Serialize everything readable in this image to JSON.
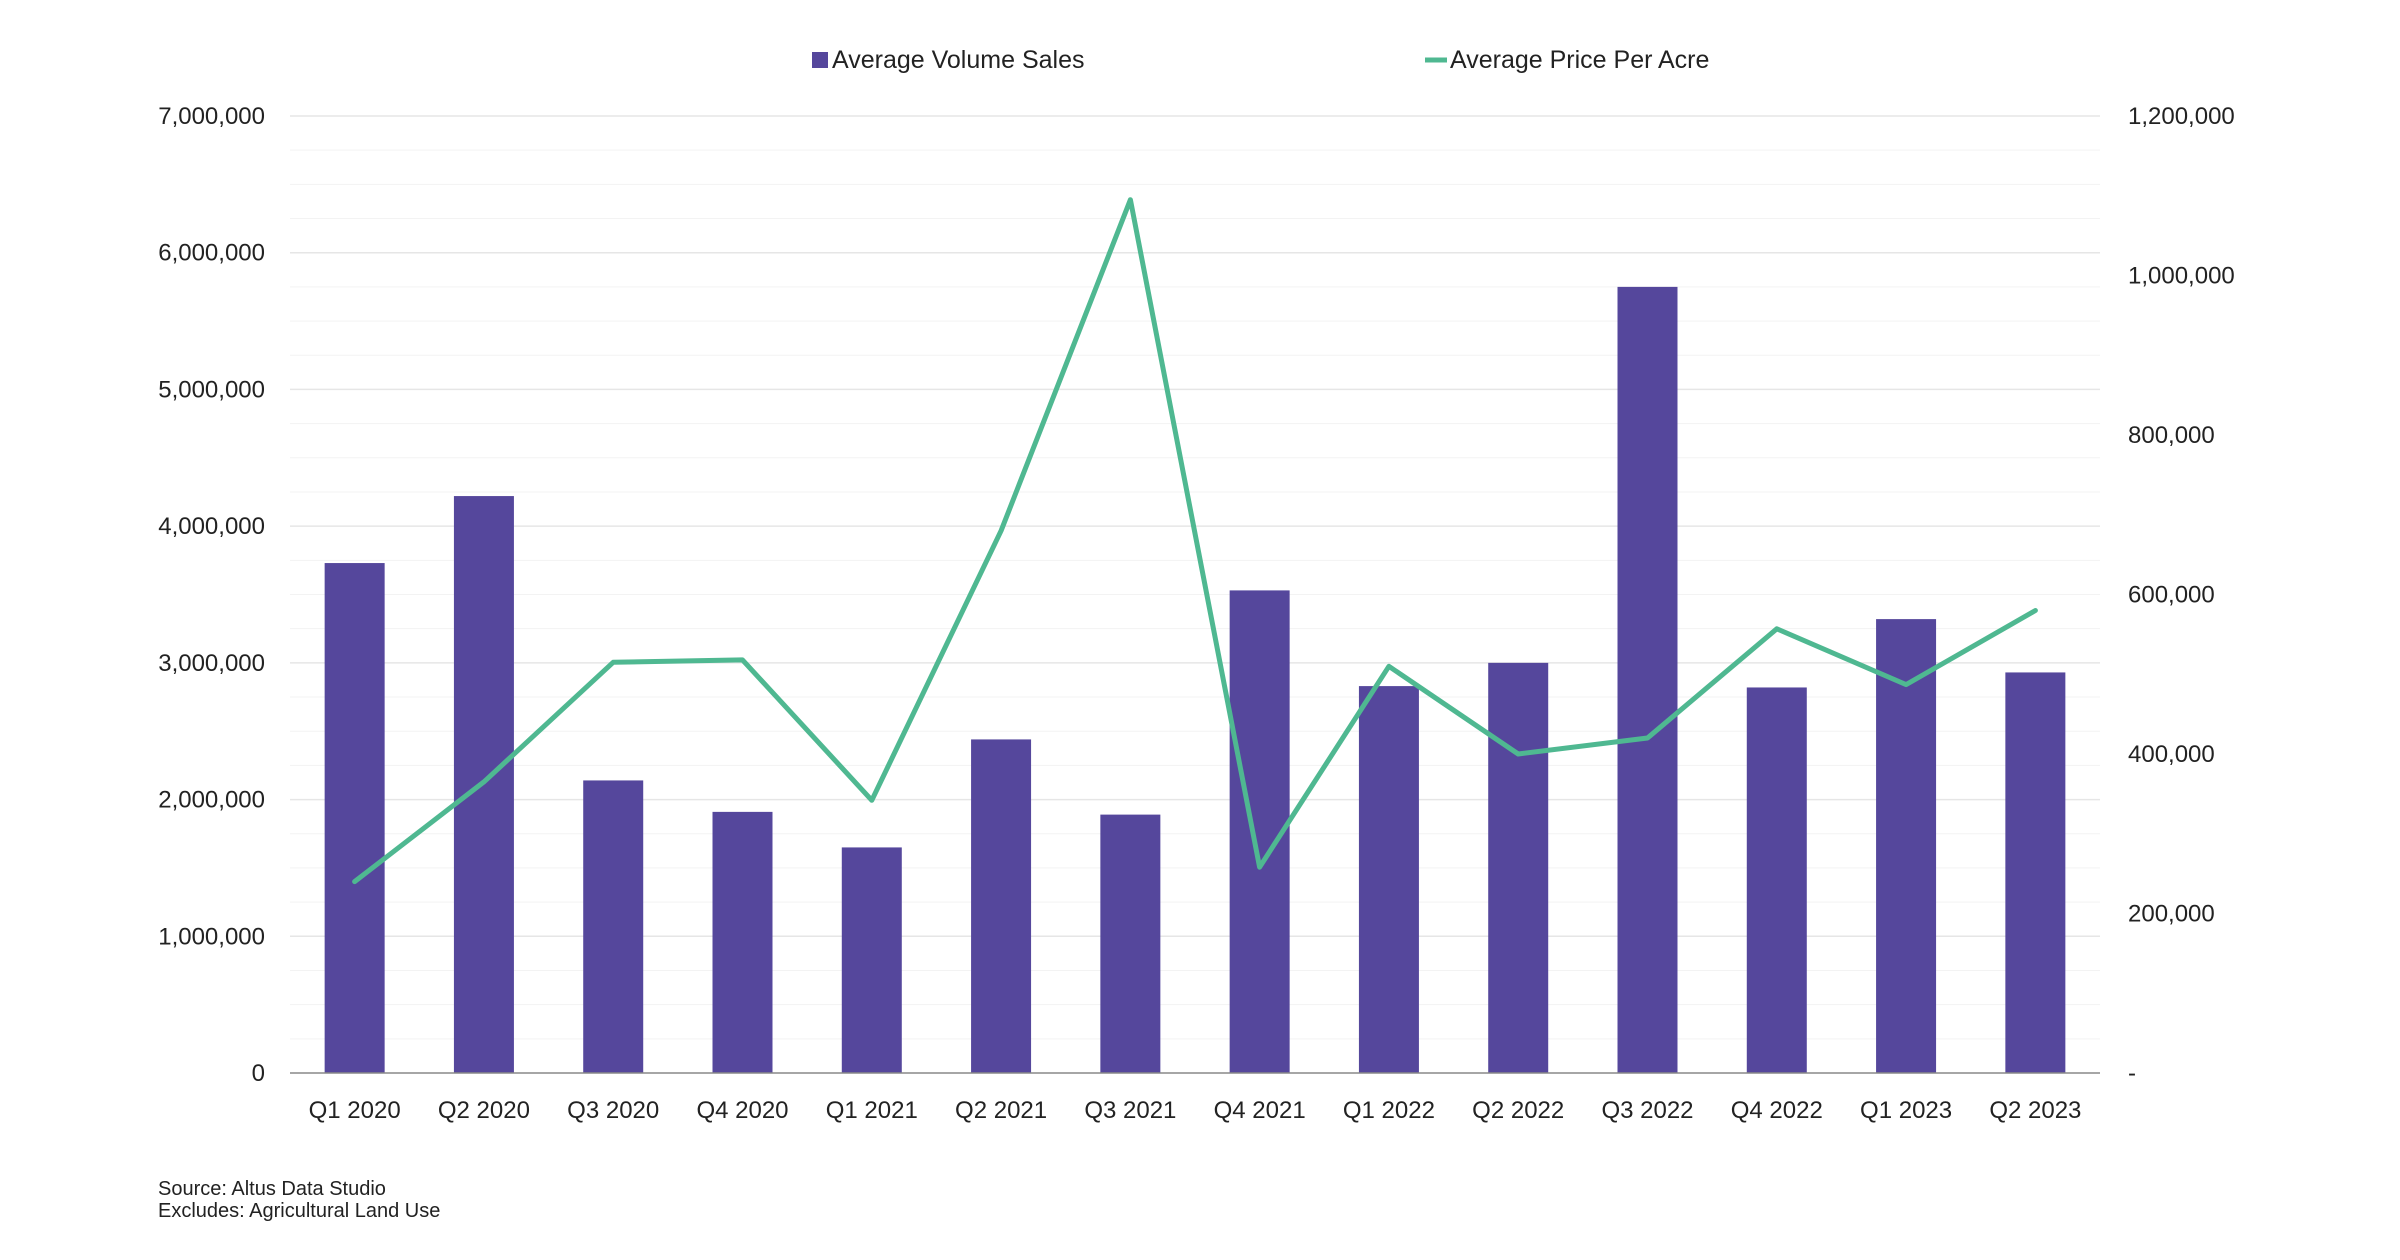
{
  "chart_data": {
    "type": "bar+line",
    "title": "",
    "categories": [
      "Q1 2020",
      "Q2 2020",
      "Q3 2020",
      "Q4 2020",
      "Q1 2021",
      "Q2 2021",
      "Q3 2021",
      "Q4 2021",
      "Q1 2022",
      "Q2 2022",
      "Q3 2022",
      "Q4 2022",
      "Q1 2023",
      "Q2 2023"
    ],
    "series": [
      {
        "name": "Average Volume Sales",
        "type": "bar",
        "axis": "left",
        "color": "#55479c",
        "values": [
          3730000,
          4220000,
          2140000,
          1910000,
          1650000,
          2440000,
          1890000,
          3530000,
          2830000,
          3000000,
          5750000,
          2820000,
          3320000,
          2930000
        ]
      },
      {
        "name": "Average Price Per Acre",
        "type": "line",
        "axis": "right",
        "color": "#4fb891",
        "values": [
          240000,
          365000,
          515000,
          518000,
          342000,
          680000,
          1095000,
          258000,
          510000,
          400000,
          420000,
          557000,
          487000,
          580000
        ]
      }
    ],
    "y_left": {
      "min": 0,
      "max": 7000000,
      "ticks": [
        0,
        1000000,
        2000000,
        3000000,
        4000000,
        5000000,
        6000000,
        7000000
      ],
      "tick_labels": [
        "0",
        "1,000,000",
        "2,000,000",
        "3,000,000",
        "4,000,000",
        "5,000,000",
        "6,000,000",
        "7,000,000"
      ]
    },
    "y_right": {
      "min": 0,
      "max": 1200000,
      "ticks": [
        0,
        200000,
        400000,
        600000,
        800000,
        1000000,
        1200000
      ],
      "tick_labels": [
        "-",
        "200,000",
        "400,000",
        "600,000",
        "800,000",
        "1,000,000",
        "1,200,000"
      ]
    },
    "legend_position": "top-center",
    "grid": true,
    "gridline_color": "#e6e6e6",
    "axis_color": "#888888"
  },
  "notes": {
    "source": "Source: Altus Data Studio",
    "excludes": "Excludes: Agricultural Land Use"
  }
}
